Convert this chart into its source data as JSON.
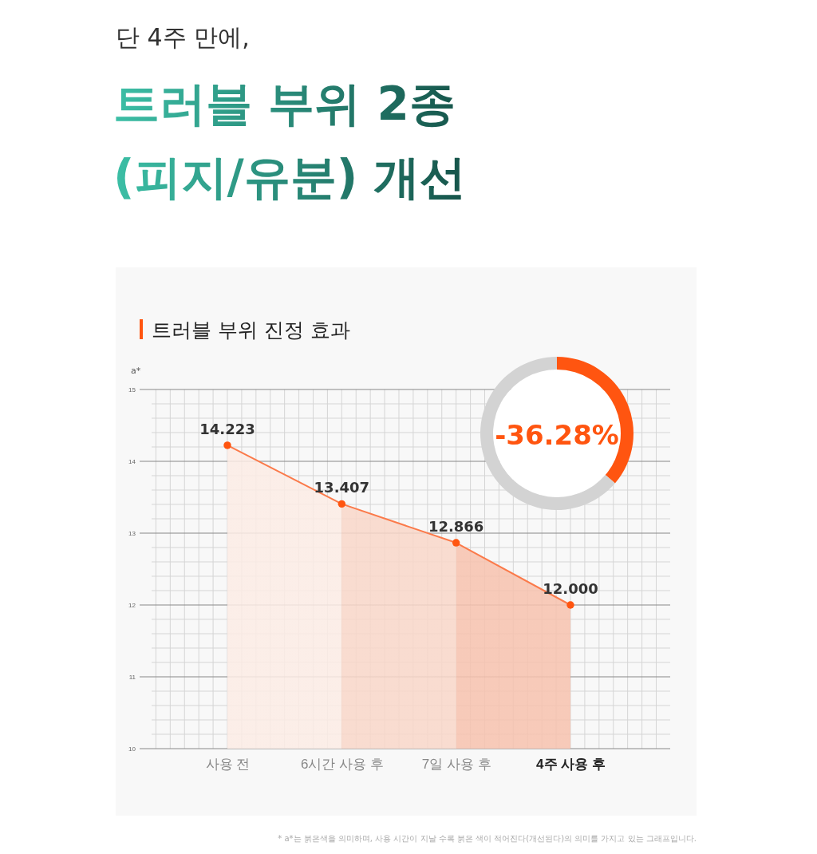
{
  "chart_data": [
    {
      "type": "area",
      "subtitle": "단 4주 만에,",
      "title": "트러블 부위 2종 (피지/유분) 개선",
      "annotations": [
        "트러블 부위 진정 효과",
        "* a*는 붉은색을 의미하며, 사용 시간이 지날 수록 붉은 색이 적어진다(개선된다)의 의미를 가지고 있는 그래프입니다."
      ],
      "ylabel": "a*",
      "categories": [
        "사용 전",
        "6시간 사용 후",
        "7일 사용 후",
        "4주 사용 후"
      ],
      "series": [
        {
          "color": "#fb7a4a",
          "colors": [
            "#fdf3ef",
            "#fae4db",
            "#f8c9b6",
            "#f6bba5"
          ],
          "values": [
            14.223,
            13.407,
            12.866,
            12.0
          ],
          "value_labels": [
            "14.223",
            "13.407",
            "12.866",
            "12.000"
          ]
        }
      ],
      "ylim": [
        10,
        15
      ],
      "yticks": [
        10,
        11,
        12,
        13,
        14,
        15
      ],
      "grid": true,
      "marker": "circle"
    },
    {
      "type": "donut",
      "categories": [
        null,
        null
      ],
      "values": [
        36.28,
        63.72
      ],
      "colors": [
        "#ff5510",
        "#d3d3d3"
      ],
      "annotations": [
        "-36.28%"
      ]
    }
  ]
}
